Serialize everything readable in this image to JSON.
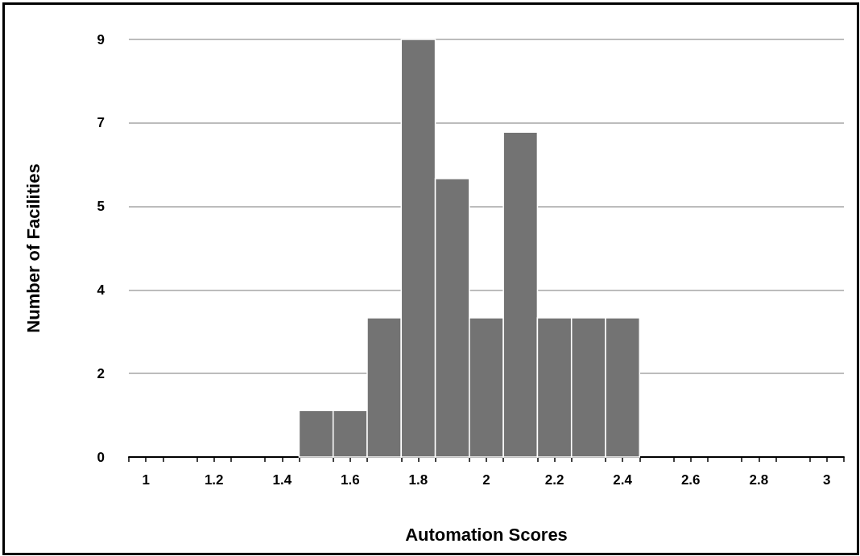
{
  "chart_data": {
    "type": "histogram",
    "xlabel": "Automation Scores",
    "ylabel": "Number of Facilities",
    "bins": [
      1.45,
      1.55,
      1.65,
      1.75,
      1.85,
      1.95,
      2.05,
      2.15,
      2.25,
      2.35,
      2.45
    ],
    "values": [
      1,
      1,
      3,
      9,
      6,
      3,
      7,
      3,
      3,
      3
    ],
    "color": "#737373",
    "xlim": [
      0.95,
      3.05
    ],
    "xticks": [
      {
        "value": 0.95,
        "label": null
      },
      {
        "value": 1,
        "label": "1"
      },
      {
        "value": 1.05,
        "label": null
      },
      {
        "value": 1.15,
        "label": null
      },
      {
        "value": 1.2,
        "label": "1.2"
      },
      {
        "value": 1.25,
        "label": null
      },
      {
        "value": 1.35,
        "label": null
      },
      {
        "value": 1.4,
        "label": "1.4"
      },
      {
        "value": 1.45,
        "label": null
      },
      {
        "value": 1.55,
        "label": null
      },
      {
        "value": 1.6,
        "label": "1.6"
      },
      {
        "value": 1.65,
        "label": null
      },
      {
        "value": 1.75,
        "label": null
      },
      {
        "value": 1.8,
        "label": "1.8"
      },
      {
        "value": 1.85,
        "label": null
      },
      {
        "value": 1.95,
        "label": null
      },
      {
        "value": 2,
        "label": "2"
      },
      {
        "value": 2.05,
        "label": null
      },
      {
        "value": 2.15,
        "label": null
      },
      {
        "value": 2.2,
        "label": "2.2"
      },
      {
        "value": 2.25,
        "label": null
      },
      {
        "value": 2.35,
        "label": null
      },
      {
        "value": 2.4,
        "label": "2.4"
      },
      {
        "value": 2.45,
        "label": null
      },
      {
        "value": 2.55,
        "label": null
      },
      {
        "value": 2.6,
        "label": "2.6"
      },
      {
        "value": 2.65,
        "label": null
      },
      {
        "value": 2.75,
        "label": null
      },
      {
        "value": 2.8,
        "label": "2.8"
      },
      {
        "value": 2.85,
        "label": null
      },
      {
        "value": 2.95,
        "label": null
      },
      {
        "value": 3,
        "label": "3"
      },
      {
        "value": 3.05,
        "label": null
      }
    ],
    "ylim": [
      0,
      9
    ],
    "yticks": [
      0,
      {
        "value": 1.8,
        "label": "2"
      },
      {
        "value": 3.6,
        "label": "4"
      },
      {
        "value": 5.4,
        "label": "5"
      },
      {
        "value": 7.2,
        "label": "7"
      },
      9
    ],
    "grid": "y"
  }
}
